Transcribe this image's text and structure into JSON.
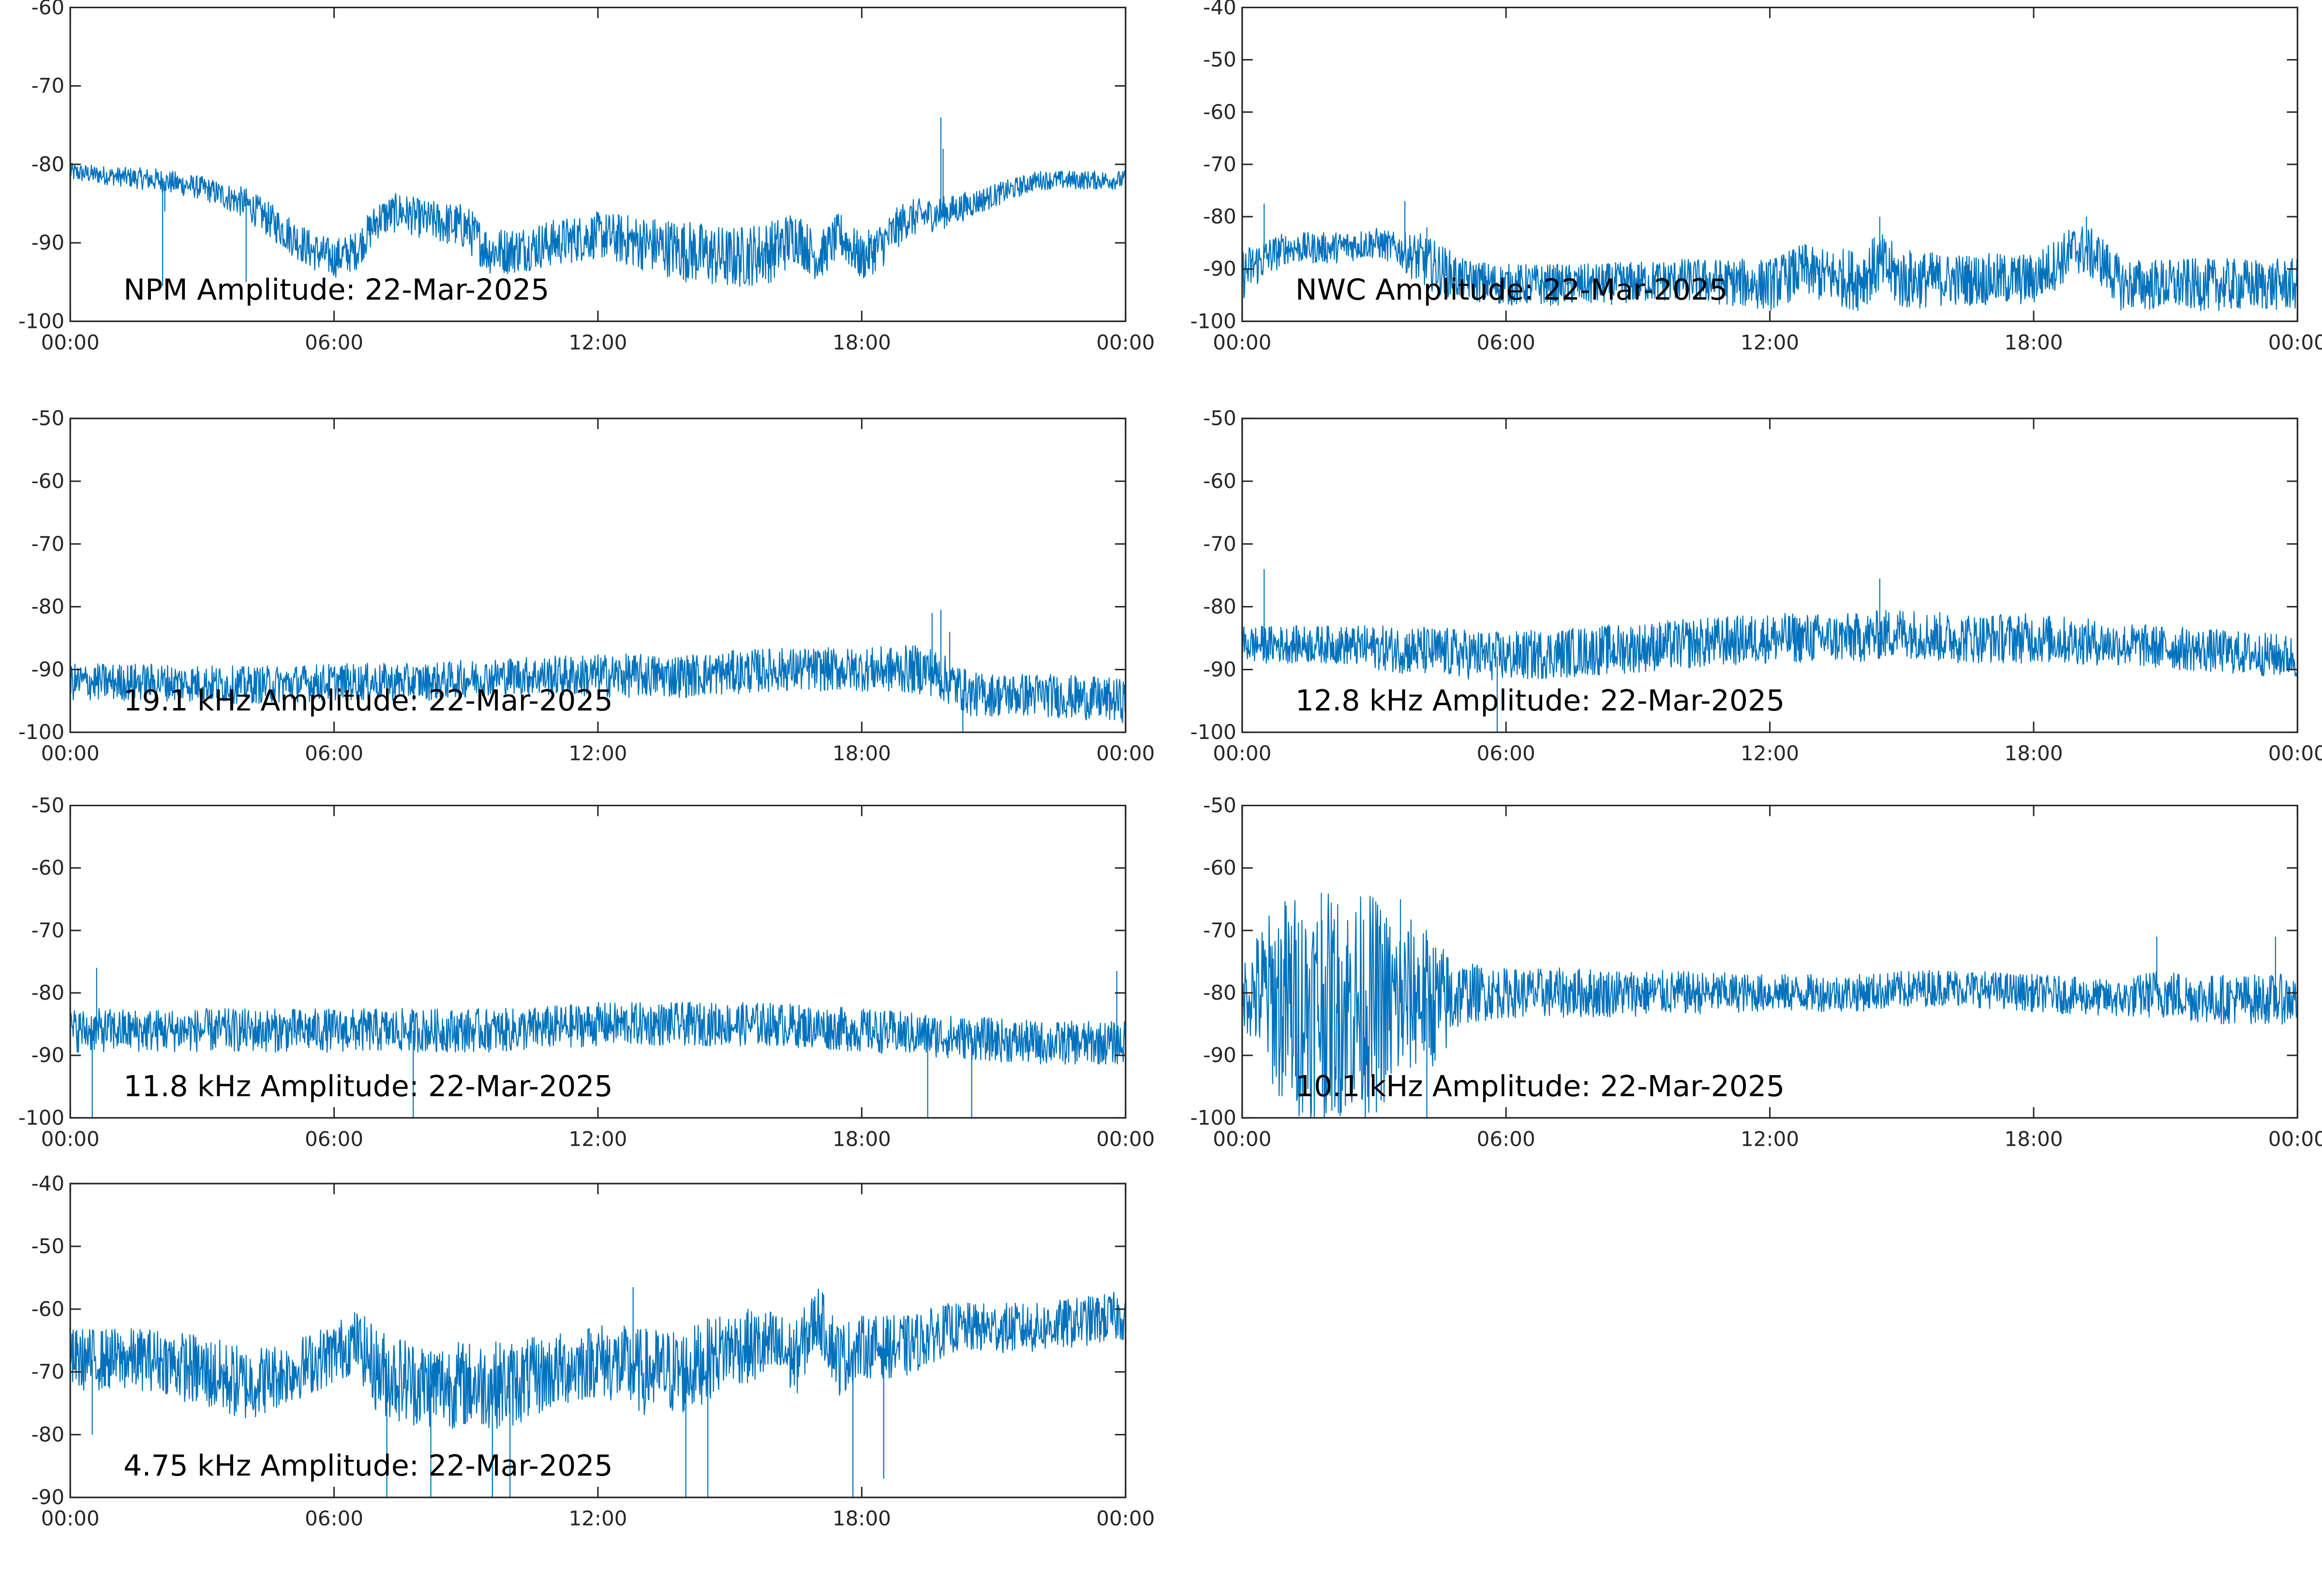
{
  "figure_background": "#ffffff",
  "chart_data": [
    {
      "type": "line",
      "title": "NPM Amplitude: 22-Mar-2025",
      "xlabel": "",
      "ylabel": "",
      "xlim": [
        "00:00",
        "24:00"
      ],
      "xticks": [
        "00:00",
        "06:00",
        "12:00",
        "18:00",
        "00:00"
      ],
      "ylim": [
        -100,
        -60
      ],
      "yticks": [
        -60,
        -70,
        -80,
        -90,
        -100
      ],
      "grid": false,
      "color": "#0072bd",
      "series": [
        {
          "x_hours": [
            0,
            1,
            2,
            3,
            4,
            5,
            5.5,
            6,
            6.5,
            7,
            7.5,
            8,
            9,
            9.5,
            10,
            11,
            12,
            13,
            14,
            15,
            16,
            16.5,
            17,
            17.5,
            18,
            18.5,
            19,
            20,
            21,
            22,
            23,
            24
          ],
          "values": [
            -81,
            -81.5,
            -82,
            -83,
            -85,
            -89,
            -91,
            -92,
            -91,
            -87,
            -86,
            -87,
            -88,
            -91,
            -91,
            -90,
            -89,
            -90,
            -91,
            -92,
            -91,
            -89,
            -92,
            -89,
            -92,
            -90,
            -87,
            -86,
            -84,
            -82,
            -82,
            -82
          ],
          "spread": [
            1.2,
            1.2,
            1.5,
            1.5,
            2,
            2.5,
            2.5,
            2.5,
            2.5,
            2.5,
            2.5,
            2.5,
            3,
            3,
            3,
            3,
            3,
            3.5,
            4,
            4,
            4,
            3.5,
            3,
            3,
            3,
            3,
            2.5,
            2,
            1.5,
            1.2,
            1.2,
            1.2
          ],
          "spikes": [
            [
              2.1,
              -95.5
            ],
            [
              2.15,
              -86
            ],
            [
              4.0,
              -95
            ],
            [
              19.8,
              -74
            ],
            [
              19.85,
              -78
            ]
          ]
        }
      ]
    },
    {
      "type": "line",
      "title": "NWC Amplitude: 22-Mar-2025",
      "xlabel": "",
      "ylabel": "",
      "xlim": [
        "00:00",
        "24:00"
      ],
      "xticks": [
        "00:00",
        "06:00",
        "12:00",
        "18:00",
        "00:00"
      ],
      "ylim": [
        -100,
        -40
      ],
      "yticks": [
        -40,
        -50,
        -60,
        -70,
        -80,
        -90,
        -100
      ],
      "grid": false,
      "color": "#0072bd",
      "series": [
        {
          "x_hours": [
            0,
            0.5,
            1,
            2,
            3,
            3.5,
            4,
            4.5,
            5,
            6,
            8,
            10,
            12,
            12.8,
            13,
            14,
            14.5,
            15,
            16,
            18,
            19,
            19.5,
            20,
            21,
            22,
            23,
            24
          ],
          "values": [
            -91,
            -88,
            -86,
            -86,
            -85,
            -86,
            -88,
            -90,
            -92,
            -93,
            -93,
            -92,
            -93,
            -90,
            -91,
            -92,
            -89,
            -92,
            -92,
            -92,
            -86,
            -88,
            -93,
            -93,
            -93,
            -93,
            -93
          ],
          "spread": [
            5,
            4,
            3,
            3,
            3,
            3,
            5,
            5,
            4,
            4,
            4,
            4,
            5,
            5,
            5,
            6,
            6,
            6,
            5,
            5,
            5,
            5,
            5,
            5,
            5,
            5,
            5
          ],
          "spikes": [
            [
              0.5,
              -77.5
            ],
            [
              3.7,
              -77
            ],
            [
              4.2,
              -82
            ],
            [
              14.5,
              -80
            ],
            [
              19.2,
              -80
            ]
          ]
        }
      ]
    },
    {
      "type": "line",
      "title": "19.1 kHz Amplitude: 22-Mar-2025",
      "xlabel": "",
      "ylabel": "",
      "xlim": [
        "00:00",
        "24:00"
      ],
      "xticks": [
        "00:00",
        "06:00",
        "12:00",
        "18:00",
        "00:00"
      ],
      "ylim": [
        -100,
        -50
      ],
      "yticks": [
        -50,
        -60,
        -70,
        -80,
        -90,
        -100
      ],
      "grid": false,
      "color": "#0072bd",
      "series": [
        {
          "x_hours": [
            0,
            2,
            4,
            6,
            8,
            10,
            12,
            14,
            16,
            18,
            19.5,
            20.5,
            22,
            24
          ],
          "values": [
            -92,
            -92,
            -92.5,
            -92,
            -92,
            -91,
            -91,
            -91,
            -90,
            -90,
            -90,
            -94,
            -94,
            -95
          ],
          "spread": [
            3,
            3,
            3,
            3,
            3,
            3,
            3.5,
            3.5,
            3.5,
            3.5,
            4,
            3.5,
            3.5,
            3.5
          ],
          "spikes": [
            [
              19.6,
              -81
            ],
            [
              19.8,
              -80.5
            ],
            [
              20.0,
              -84
            ],
            [
              20.3,
              -100
            ]
          ]
        }
      ]
    },
    {
      "type": "line",
      "title": "12.8 kHz Amplitude: 22-Mar-2025",
      "xlabel": "",
      "ylabel": "",
      "xlim": [
        "00:00",
        "24:00"
      ],
      "xticks": [
        "00:00",
        "06:00",
        "12:00",
        "18:00",
        "00:00"
      ],
      "ylim": [
        -100,
        -50
      ],
      "yticks": [
        -50,
        -60,
        -70,
        -80,
        -90,
        -100
      ],
      "grid": false,
      "color": "#0072bd",
      "series": [
        {
          "x_hours": [
            0,
            2,
            4,
            6,
            8,
            10,
            12,
            14,
            15,
            16,
            18,
            20,
            22,
            24
          ],
          "values": [
            -86,
            -86,
            -87,
            -88,
            -87,
            -86,
            -85,
            -85,
            -84,
            -85,
            -85,
            -86,
            -87,
            -88
          ],
          "spread": [
            3,
            3,
            4,
            4,
            4,
            4,
            4,
            4,
            4,
            4,
            4,
            3.5,
            3.5,
            3.5
          ],
          "spikes": [
            [
              0.5,
              -74
            ],
            [
              5.8,
              -100
            ],
            [
              14.5,
              -75.5
            ]
          ]
        }
      ]
    },
    {
      "type": "line",
      "title": "11.8 kHz Amplitude: 22-Mar-2025",
      "xlabel": "",
      "ylabel": "",
      "xlim": [
        "00:00",
        "24:00"
      ],
      "xticks": [
        "00:00",
        "06:00",
        "12:00",
        "18:00",
        "00:00"
      ],
      "ylim": [
        -100,
        -50
      ],
      "yticks": [
        -50,
        -60,
        -70,
        -80,
        -90,
        -100
      ],
      "grid": false,
      "color": "#0072bd",
      "series": [
        {
          "x_hours": [
            0,
            2,
            4,
            6,
            8,
            10,
            12,
            14,
            16,
            18,
            20,
            22,
            24
          ],
          "values": [
            -86,
            -86,
            -86,
            -86,
            -86,
            -86,
            -85,
            -85,
            -85,
            -86,
            -87,
            -88,
            -88
          ],
          "spread": [
            3.5,
            3.5,
            3.5,
            3.5,
            3.5,
            3.5,
            3.5,
            3.5,
            3.5,
            3.5,
            3.5,
            3.5,
            3.5
          ],
          "spikes": [
            [
              0.5,
              -100
            ],
            [
              0.6,
              -76
            ],
            [
              7.8,
              -100
            ],
            [
              19.5,
              -100
            ],
            [
              20.5,
              -100
            ],
            [
              23.8,
              -76.5
            ]
          ]
        }
      ]
    },
    {
      "type": "line",
      "title": "10.1 kHz Amplitude: 22-Mar-2025",
      "xlabel": "",
      "ylabel": "",
      "xlim": [
        "00:00",
        "24:00"
      ],
      "xticks": [
        "00:00",
        "06:00",
        "12:00",
        "18:00",
        "00:00"
      ],
      "ylim": [
        -100,
        -50
      ],
      "yticks": [
        -50,
        -60,
        -70,
        -80,
        -90,
        -100
      ],
      "grid": false,
      "color": "#0072bd",
      "series": [
        {
          "x_hours": [
            0,
            0.5,
            1,
            2,
            3,
            3.5,
            4,
            4.5,
            5,
            6,
            8,
            10,
            12,
            14,
            16,
            18,
            20,
            20.8,
            22,
            24
          ],
          "values": [
            -80,
            -80,
            -82,
            -82,
            -82,
            -82,
            -80,
            -82,
            -80,
            -80,
            -80,
            -80,
            -80,
            -80,
            -79,
            -80,
            -81,
            -80,
            -81,
            -81
          ],
          "spread": [
            5,
            12,
            18,
            18,
            18,
            14,
            12,
            10,
            5,
            4,
            4,
            3.5,
            3,
            3,
            3,
            3,
            3,
            4,
            4,
            4
          ],
          "spikes": [
            [
              1.8,
              -64
            ],
            [
              3.6,
              -65
            ],
            [
              4.2,
              -100
            ],
            [
              20.8,
              -71
            ],
            [
              23.5,
              -71
            ]
          ]
        }
      ]
    },
    {
      "type": "line",
      "title": "4.75 kHz Amplitude: 22-Mar-2025",
      "xlabel": "",
      "ylabel": "",
      "xlim": [
        "00:00",
        "24:00"
      ],
      "xticks": [
        "00:00",
        "06:00",
        "12:00",
        "18:00",
        "00:00"
      ],
      "ylim": [
        -90,
        -40
      ],
      "yticks": [
        -40,
        -50,
        -60,
        -70,
        -80,
        -90
      ],
      "grid": false,
      "color": "#0072bd",
      "series": [
        {
          "x_hours": [
            0,
            1,
            2,
            3,
            4,
            5,
            6,
            6.5,
            7,
            8,
            9,
            10,
            11,
            12,
            13,
            14,
            15,
            16,
            16.5,
            17,
            17.5,
            18,
            19,
            20,
            21,
            22,
            23,
            24
          ],
          "values": [
            -68,
            -68,
            -68,
            -70,
            -72,
            -70,
            -67,
            -65,
            -70,
            -72,
            -72,
            -72,
            -70,
            -68,
            -70,
            -70,
            -66,
            -66,
            -68,
            -61,
            -68,
            -66,
            -66,
            -63,
            -63,
            -63,
            -62,
            -61
          ],
          "spread": [
            5,
            5,
            5,
            6,
            6,
            5,
            5,
            5,
            7,
            7,
            7,
            7,
            6,
            6,
            7,
            7,
            6,
            6,
            6,
            5,
            6,
            5,
            5,
            4,
            4,
            4,
            4,
            4
          ],
          "spikes": [
            [
              0.5,
              -80
            ],
            [
              7.2,
              -90
            ],
            [
              8.2,
              -90
            ],
            [
              9.6,
              -90
            ],
            [
              10.0,
              -90
            ],
            [
              12.8,
              -56.5
            ],
            [
              14.0,
              -90
            ],
            [
              14.5,
              -90
            ],
            [
              17.8,
              -90
            ],
            [
              18.5,
              -87
            ]
          ]
        }
      ]
    }
  ]
}
